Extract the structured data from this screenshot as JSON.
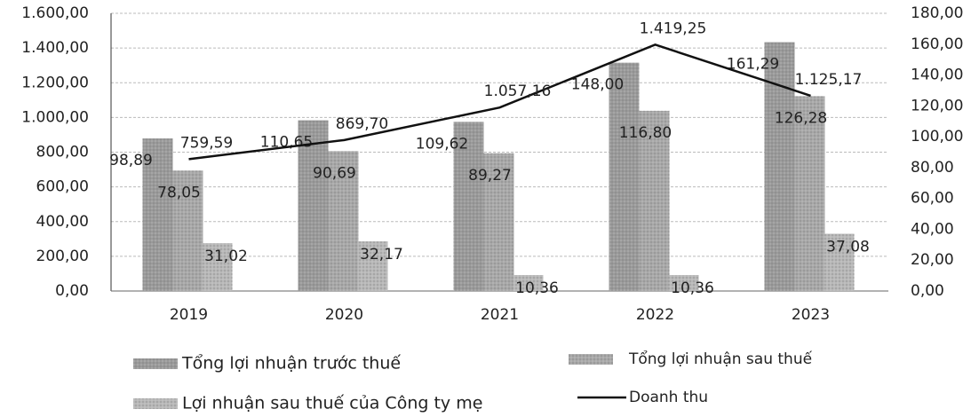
{
  "chart_data": {
    "type": "bar",
    "categories": [
      "2019",
      "2020",
      "2021",
      "2022",
      "2023"
    ],
    "series": [
      {
        "name": "Tổng lợi nhuận trước thuế",
        "color": "#9a9a9a",
        "axis": "y2",
        "values": [
          98.89,
          110.65,
          109.62,
          148.0,
          161.29
        ],
        "value_labels": [
          "98,89",
          "110,65",
          "109,62",
          "148,00",
          "161,29"
        ]
      },
      {
        "name": "Tổng lợi nhuận sau thuế",
        "color": "#a8a8a8",
        "axis": "y2",
        "values": [
          78.05,
          90.69,
          89.27,
          116.8,
          126.28
        ],
        "value_labels": [
          "78,05",
          "90,69",
          "89,27",
          "116,80",
          "126,28"
        ]
      },
      {
        "name": "Lợi nhuận sau thuế của Công ty mẹ",
        "color": "#b8b8b8",
        "axis": "y2",
        "values": [
          31.02,
          32.17,
          10.36,
          10.36,
          37.08
        ],
        "value_labels": [
          "31,02",
          "32,17",
          "10,36",
          "10,36",
          "37,08"
        ]
      },
      {
        "name": "Doanh thu",
        "color": "#111111",
        "type": "line",
        "values": [
          759.59,
          869.7,
          1057.16,
          1419.25,
          1125.17
        ],
        "value_labels": [
          "759,59",
          "869,70",
          "1.057,16",
          "1.419,25",
          "1.125,17"
        ]
      }
    ],
    "ylim": [
      0,
      1600
    ],
    "yticks": [
      {
        "value": 0,
        "label": "0,00"
      },
      {
        "value": 200,
        "label": "200,00"
      },
      {
        "value": 400,
        "label": "400,00"
      },
      {
        "value": 600,
        "label": "600,00"
      },
      {
        "value": 800,
        "label": "800,00"
      },
      {
        "value": 1000,
        "label": "1.000,00"
      },
      {
        "value": 1200,
        "label": "1.200,00"
      },
      {
        "value": 1400,
        "label": "1.400,00"
      },
      {
        "value": 1600,
        "label": "1.600,00"
      }
    ],
    "y2lim": [
      0,
      180
    ],
    "y2ticks": [
      {
        "value": 0,
        "label": "0,00"
      },
      {
        "value": 20,
        "label": "20,00"
      },
      {
        "value": 40,
        "label": "40,00"
      },
      {
        "value": 60,
        "label": "60,00"
      },
      {
        "value": 80,
        "label": "80,00"
      },
      {
        "value": 100,
        "label": "100,00"
      },
      {
        "value": 120,
        "label": "120,00"
      },
      {
        "value": 140,
        "label": "140,00"
      },
      {
        "value": 160,
        "label": "160,00"
      },
      {
        "value": 180,
        "label": "180,00"
      }
    ],
    "grid": true,
    "legend": "bottom"
  }
}
